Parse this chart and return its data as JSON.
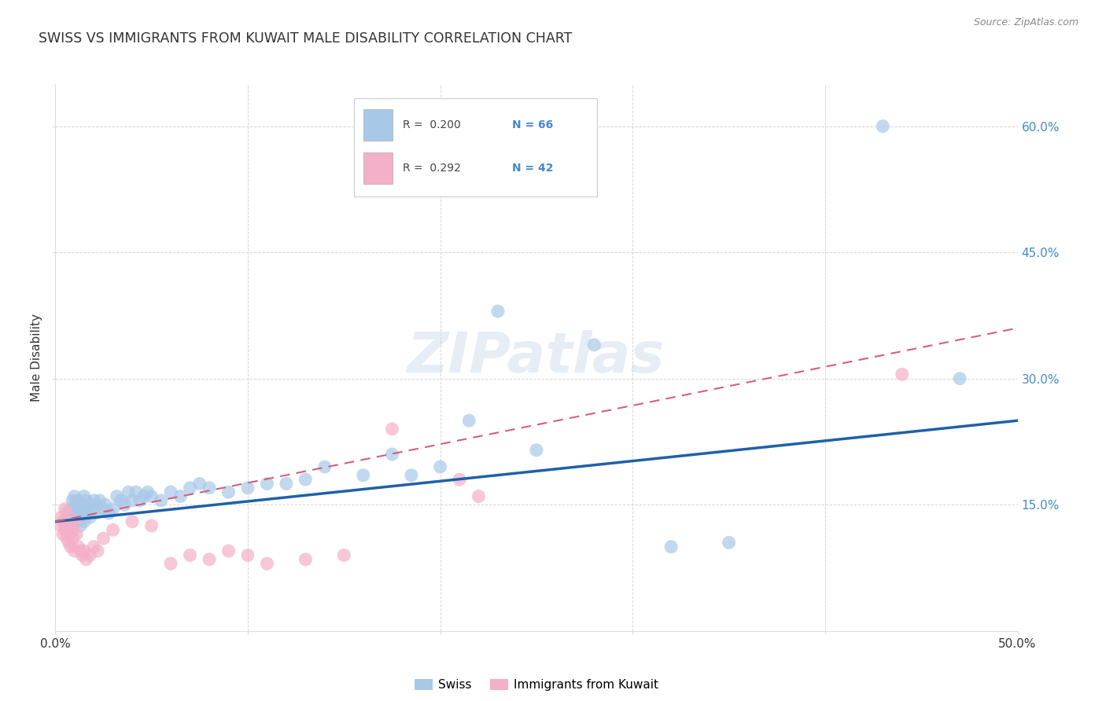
{
  "title": "SWISS VS IMMIGRANTS FROM KUWAIT MALE DISABILITY CORRELATION CHART",
  "source_text": "Source: ZipAtlas.com",
  "ylabel": "Male Disability",
  "xlim": [
    0.0,
    0.5
  ],
  "ylim": [
    0.0,
    0.65
  ],
  "ytick_vals": [
    0.15,
    0.3,
    0.45,
    0.6
  ],
  "ytick_labels": [
    "15.0%",
    "30.0%",
    "45.0%",
    "60.0%"
  ],
  "xtick_vals": [
    0.0,
    0.5
  ],
  "xtick_labels": [
    "0.0%",
    "50.0%"
  ],
  "legend_swiss": "Swiss",
  "legend_kuwait": "Immigrants from Kuwait",
  "swiss_R": "0.200",
  "swiss_N": "66",
  "kuwait_R": "0.292",
  "kuwait_N": "42",
  "swiss_color": "#a8c8e8",
  "kuwait_color": "#f4b0c8",
  "swiss_line_color": "#2060a8",
  "kuwait_line_color": "#d06080",
  "grid_color": "#cccccc",
  "background_color": "#ffffff",
  "title_color": "#333333",
  "ytick_color": "#4488cc",
  "xtick_color": "#333333",
  "source_color": "#888888",
  "swiss_scatter_x": [
    0.005,
    0.008,
    0.008,
    0.009,
    0.009,
    0.01,
    0.01,
    0.01,
    0.011,
    0.011,
    0.012,
    0.012,
    0.013,
    0.013,
    0.014,
    0.014,
    0.015,
    0.015,
    0.016,
    0.016,
    0.017,
    0.018,
    0.018,
    0.019,
    0.02,
    0.021,
    0.022,
    0.023,
    0.025,
    0.026,
    0.028,
    0.03,
    0.032,
    0.034,
    0.036,
    0.038,
    0.04,
    0.042,
    0.044,
    0.046,
    0.048,
    0.05,
    0.055,
    0.06,
    0.065,
    0.07,
    0.075,
    0.08,
    0.09,
    0.1,
    0.11,
    0.12,
    0.13,
    0.14,
    0.16,
    0.175,
    0.185,
    0.2,
    0.215,
    0.23,
    0.25,
    0.28,
    0.32,
    0.35,
    0.43,
    0.47
  ],
  "swiss_scatter_y": [
    0.13,
    0.145,
    0.125,
    0.155,
    0.135,
    0.14,
    0.15,
    0.16,
    0.13,
    0.145,
    0.135,
    0.155,
    0.125,
    0.145,
    0.14,
    0.15,
    0.13,
    0.16,
    0.145,
    0.155,
    0.14,
    0.135,
    0.15,
    0.145,
    0.155,
    0.14,
    0.15,
    0.155,
    0.145,
    0.15,
    0.14,
    0.145,
    0.16,
    0.155,
    0.15,
    0.165,
    0.155,
    0.165,
    0.155,
    0.16,
    0.165,
    0.16,
    0.155,
    0.165,
    0.16,
    0.17,
    0.175,
    0.17,
    0.165,
    0.17,
    0.175,
    0.175,
    0.18,
    0.195,
    0.185,
    0.21,
    0.185,
    0.195,
    0.25,
    0.38,
    0.215,
    0.34,
    0.1,
    0.105,
    0.6,
    0.3
  ],
  "kuwait_scatter_x": [
    0.003,
    0.003,
    0.004,
    0.004,
    0.005,
    0.005,
    0.006,
    0.006,
    0.006,
    0.007,
    0.007,
    0.008,
    0.008,
    0.009,
    0.009,
    0.01,
    0.01,
    0.011,
    0.012,
    0.013,
    0.014,
    0.015,
    0.016,
    0.018,
    0.02,
    0.022,
    0.025,
    0.03,
    0.04,
    0.05,
    0.06,
    0.07,
    0.08,
    0.09,
    0.1,
    0.11,
    0.13,
    0.15,
    0.175,
    0.21,
    0.22,
    0.44
  ],
  "kuwait_scatter_y": [
    0.135,
    0.125,
    0.13,
    0.115,
    0.145,
    0.12,
    0.11,
    0.13,
    0.14,
    0.115,
    0.105,
    0.125,
    0.1,
    0.12,
    0.11,
    0.13,
    0.095,
    0.115,
    0.1,
    0.095,
    0.09,
    0.095,
    0.085,
    0.09,
    0.1,
    0.095,
    0.11,
    0.12,
    0.13,
    0.125,
    0.08,
    0.09,
    0.085,
    0.095,
    0.09,
    0.08,
    0.085,
    0.09,
    0.24,
    0.18,
    0.16,
    0.305
  ]
}
